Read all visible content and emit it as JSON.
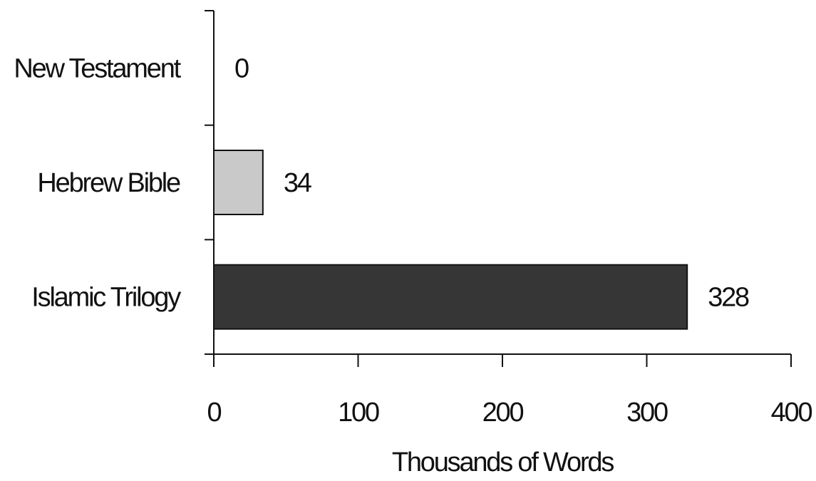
{
  "chart_data": {
    "type": "bar",
    "orientation": "horizontal",
    "categories": [
      "New Testament",
      "Hebrew Bible",
      "Islamic Trilogy"
    ],
    "values": [
      0,
      34,
      328
    ],
    "value_labels": [
      "0",
      "34",
      "328"
    ],
    "colors": [
      "#ffffff",
      "#c9c9c9",
      "#363636"
    ],
    "xlabel": "Thousands of Words",
    "ylabel": "",
    "title": "",
    "xlim": [
      0,
      400
    ],
    "xticks": [
      0,
      100,
      200,
      300,
      400
    ],
    "xtick_labels": [
      "0",
      "100",
      "200",
      "300",
      "400"
    ],
    "grid": false
  }
}
